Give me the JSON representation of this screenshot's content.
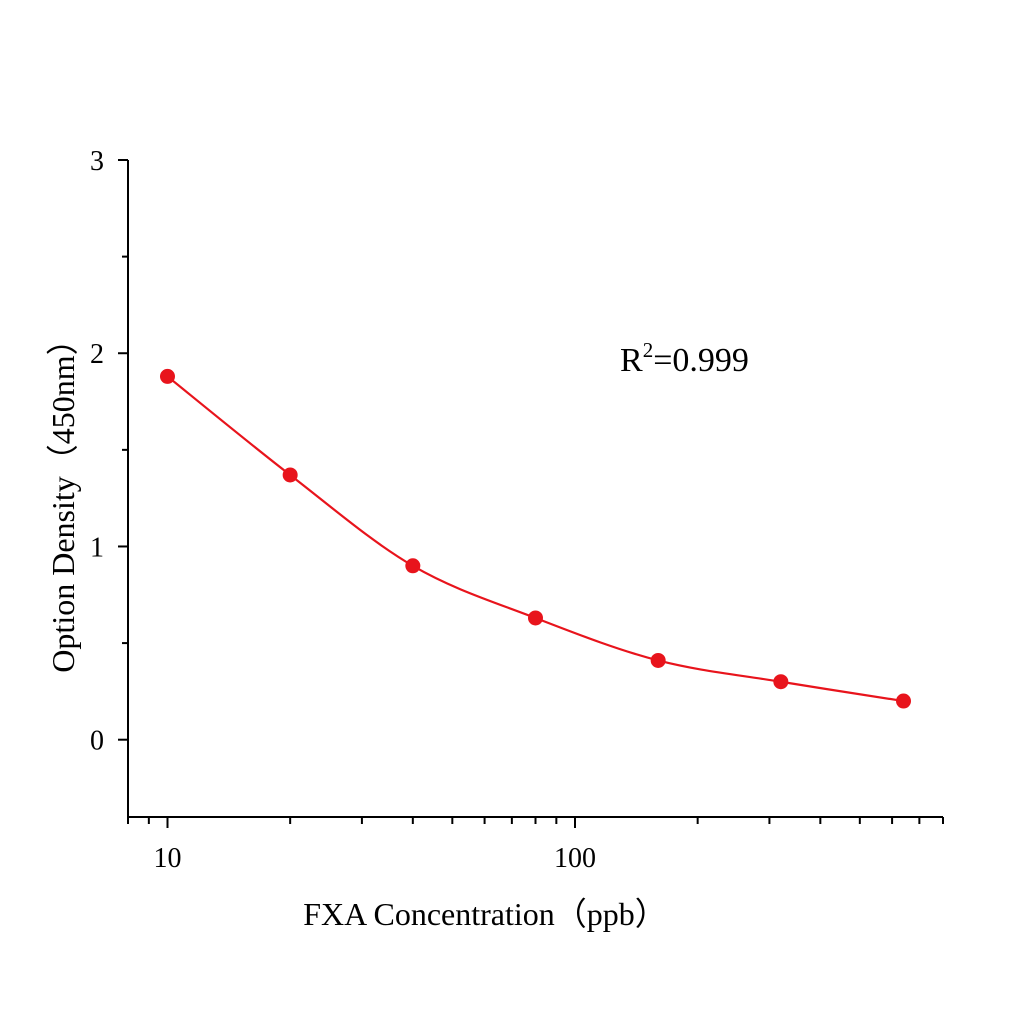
{
  "chart_data": {
    "type": "scatter",
    "title": "",
    "xlabel": "FXA Concentration（ppb）",
    "ylabel": "Option Density（450nm）",
    "x_scale": "log",
    "xlim": [
      8,
      800
    ],
    "ylim": [
      -0.4,
      3
    ],
    "x_ticks": [
      {
        "value": 10,
        "label": "10"
      },
      {
        "value": 100,
        "label": "100"
      }
    ],
    "y_ticks": [
      {
        "value": 0,
        "label": "0"
      },
      {
        "value": 1,
        "label": "1"
      },
      {
        "value": 2,
        "label": "2"
      },
      {
        "value": 3,
        "label": "3"
      }
    ],
    "grid": false,
    "legend": "none",
    "annotation": {
      "prefix": "R",
      "sup": "2",
      "suffix": "=0.999"
    },
    "series": [
      {
        "color": "#e8141c",
        "x": [
          10,
          20,
          40,
          80,
          160,
          320,
          640
        ],
        "y": [
          1.88,
          1.37,
          0.9,
          0.63,
          0.41,
          0.3,
          0.2
        ],
        "fit_line": true
      }
    ]
  }
}
